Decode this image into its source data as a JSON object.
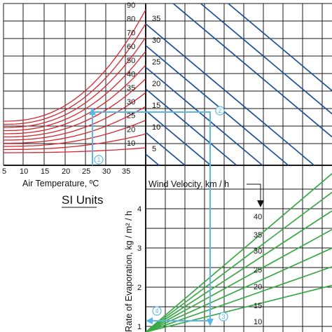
{
  "chart_data": {
    "type": "nomograph",
    "title": "SI Units",
    "colors": {
      "temperature": "#d9232e",
      "dewpoint": "#1b4f9c",
      "evaporation": "#39a845",
      "guide": "#5bb7e8",
      "grid": "#1a1a1a"
    },
    "panels": [
      {
        "id": "air-temperature",
        "type": "line",
        "xlabel": "Air Temperature, ºC",
        "xticks": [
          "5",
          "10",
          "15",
          "20",
          "25",
          "30",
          "35"
        ],
        "series_labels": [
          "10",
          "20",
          "25",
          "30",
          "35",
          "40",
          "50",
          "60",
          "70",
          "80",
          "90"
        ]
      },
      {
        "id": "dew-point",
        "type": "line",
        "series_labels": [
          "5",
          "10",
          "15",
          "20",
          "25",
          "30",
          "35"
        ]
      },
      {
        "id": "evaporation",
        "type": "line",
        "ylabel": "Rate of Evaporation, kg / m² / h",
        "yticks": [
          "1",
          "2",
          "3",
          "4"
        ],
        "legend_title": "Wind Velocity, km / h",
        "series_labels": [
          "10",
          "15",
          "20",
          "25",
          "30",
          "35",
          "40"
        ]
      }
    ],
    "guide_steps": [
      "1",
      "2",
      "3",
      "4"
    ]
  }
}
